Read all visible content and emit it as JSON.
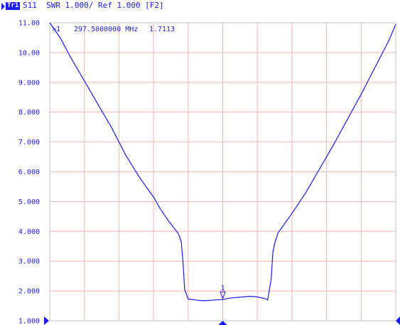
{
  "header": {
    "trace_badge": "Tr1",
    "title": "S11  SWR 1.000/ Ref 1.000 [F2]"
  },
  "marker_readout": {
    "label": ">1",
    "frequency": "297.5000000 MHz",
    "value": "1.7113"
  },
  "colors": {
    "trace": "#1a1aff",
    "grid": "#f4b4b4",
    "frame": "#c0c0c0",
    "text": "#1a1aff"
  },
  "chart_data": {
    "type": "line",
    "title": "",
    "xlabel": "",
    "ylabel": "",
    "ylim": [
      1.0,
      11.0
    ],
    "y_ticks": [
      "11.00",
      "10.00",
      "9.000",
      "8.000",
      "7.000",
      "6.000",
      "5.000",
      "4.000",
      "3.000",
      "2.000",
      "1.000"
    ],
    "x_divisions": 10,
    "grid": true,
    "marker": {
      "id": "1",
      "x_fraction": 0.5,
      "y": 1.7113
    },
    "series": [
      {
        "x": [
          0.0,
          0.03,
          0.06,
          0.1,
          0.14,
          0.18,
          0.22,
          0.26,
          0.3,
          0.32,
          0.34,
          0.36,
          0.37,
          0.375,
          0.38,
          0.385,
          0.39,
          0.4,
          0.42,
          0.44,
          0.46,
          0.48,
          0.5,
          0.52,
          0.54,
          0.56,
          0.58,
          0.6,
          0.62,
          0.63,
          0.64,
          0.645,
          0.65,
          0.66,
          0.7,
          0.74,
          0.78,
          0.82,
          0.86,
          0.9,
          0.94,
          0.98,
          1.0
        ],
        "values": [
          11.0,
          10.5,
          9.85,
          9.05,
          8.25,
          7.45,
          6.55,
          5.8,
          5.15,
          4.75,
          4.4,
          4.1,
          3.95,
          3.83,
          3.65,
          3.0,
          2.05,
          1.73,
          1.7,
          1.67,
          1.68,
          1.7,
          1.71,
          1.76,
          1.78,
          1.8,
          1.82,
          1.8,
          1.75,
          1.7,
          2.4,
          3.3,
          3.6,
          3.95,
          4.6,
          5.3,
          6.1,
          6.9,
          7.75,
          8.6,
          9.5,
          10.4,
          10.95
        ]
      }
    ]
  }
}
